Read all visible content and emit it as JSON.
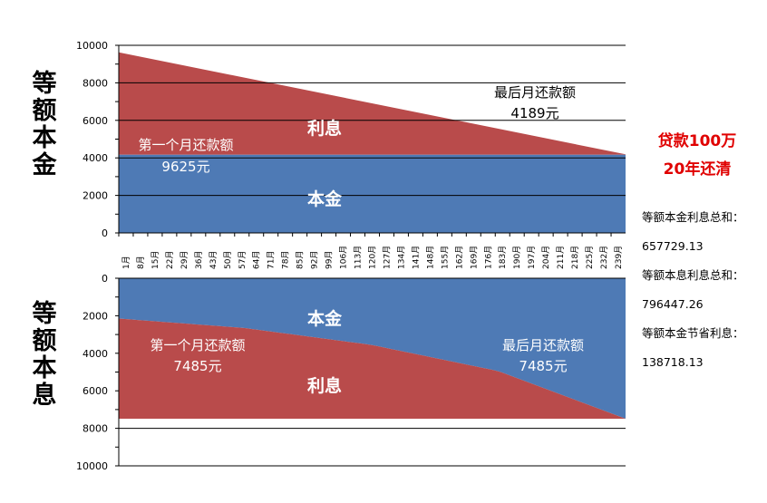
{
  "chart_data": [
    {
      "type": "area",
      "title": "等额本金",
      "ylim": [
        0,
        10000
      ],
      "yticks": [
        0,
        2000,
        4000,
        6000,
        8000,
        10000
      ],
      "months": [
        "1月",
        "8月",
        "15月",
        "22月",
        "29月",
        "36月",
        "43月",
        "50月",
        "57月",
        "64月",
        "71月",
        "78月",
        "85月",
        "92月",
        "99月",
        "106月",
        "113月",
        "120月",
        "127月",
        "134月",
        "141月",
        "148月",
        "155月",
        "162月",
        "169月",
        "176月",
        "183月",
        "190月",
        "197月",
        "204月",
        "211月",
        "218月",
        "225月",
        "232月",
        "239月"
      ],
      "month_range": [
        1,
        240
      ],
      "series": [
        {
          "name": "本金",
          "color": "#4e7ab5",
          "start": 4167,
          "end": 4167
        },
        {
          "name": "利息",
          "color": "#b94b4b",
          "start": 5458,
          "end": 22
        }
      ],
      "annotations": [
        {
          "label": "第一个月还款额",
          "value": "9625元"
        },
        {
          "label": "最后月还款额",
          "value": "4189元"
        }
      ]
    },
    {
      "type": "area",
      "title": "等额本息",
      "ylim": [
        0,
        10000
      ],
      "y_inverted": true,
      "yticks": [
        0,
        2000,
        4000,
        6000,
        8000,
        10000
      ],
      "months": [
        "1月",
        "8月",
        "15月",
        "22月",
        "29月",
        "36月",
        "43月",
        "50月",
        "57月",
        "64月",
        "71月",
        "78月",
        "85月",
        "92月",
        "99月",
        "106月",
        "113月",
        "120月",
        "127月",
        "134月",
        "141月",
        "148月",
        "155月",
        "162月",
        "169月",
        "176月",
        "183月",
        "190月",
        "197月",
        "204月",
        "211月",
        "218月",
        "225月",
        "232月",
        "239月"
      ],
      "month_range": [
        1,
        240
      ],
      "total_payment": 7485,
      "series": [
        {
          "name": "本金",
          "color": "#4e7ab5",
          "points": [
            [
              1,
              2150
            ],
            [
              60,
              2650
            ],
            [
              120,
              3550
            ],
            [
              180,
              4950
            ],
            [
              240,
              7485
            ]
          ]
        },
        {
          "name": "利息",
          "color": "#b94b4b"
        }
      ],
      "annotations": [
        {
          "label": "第一个月还款额",
          "value": "7485元"
        },
        {
          "label": "最后月还款额",
          "value": "7485元"
        }
      ]
    }
  ],
  "side": {
    "top_title": "等额本金",
    "bottom_title": "等额本息",
    "loan_line1": "贷款100万",
    "loan_line2": "20年还清",
    "summary": [
      "等额本金利息总和：",
      "657729.13",
      "等额本息利息总和：",
      "796447.26",
      "等额本金节省利息：",
      "138718.13"
    ]
  },
  "colors": {
    "principal": "#4e7ab5",
    "interest": "#b94b4b",
    "accent_red": "#e00000"
  }
}
